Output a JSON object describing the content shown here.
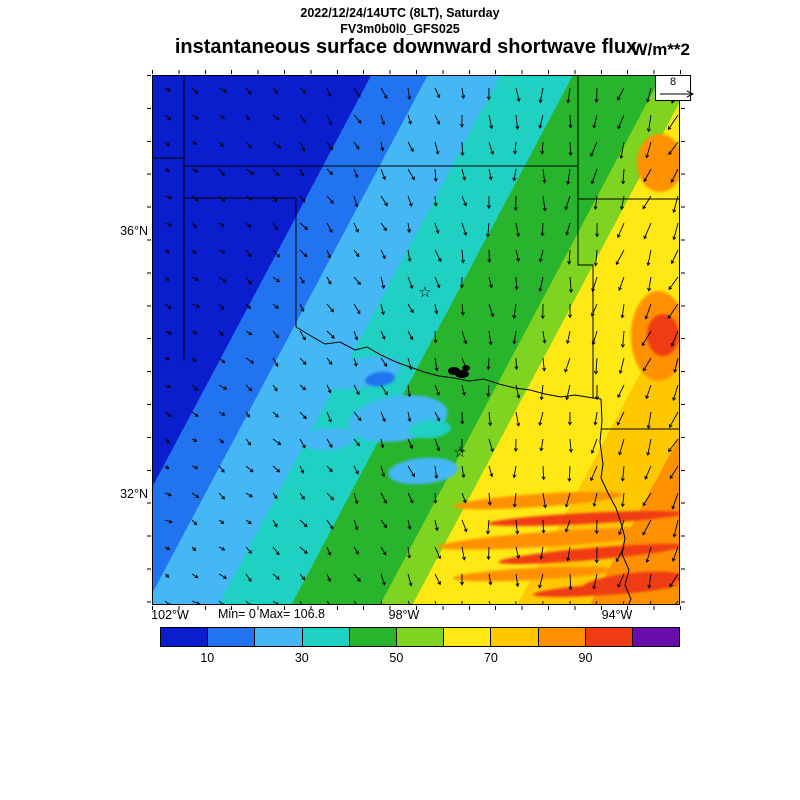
{
  "header": {
    "datetime": "2022/12/24/14UTC (8LT), Saturday",
    "model": "FV3m0b0l0_GFS025"
  },
  "title": {
    "main": "instantaneous surface downward shortwave flux",
    "units": "W/m**2"
  },
  "map": {
    "stats": "Min= 0 Max= 106.8",
    "wind_reference": "8",
    "station_marker_glyph": "☆",
    "lat_ticks": [
      {
        "label": "36°N"
      },
      {
        "label": "32°N"
      }
    ],
    "lon_ticks": [
      {
        "label": "102°W"
      },
      {
        "label": "98°W"
      },
      {
        "label": "94°W"
      }
    ]
  },
  "colorbar": {
    "ticks": [
      "10",
      "30",
      "50",
      "70",
      "90"
    ],
    "colors": [
      "#0a1ecd",
      "#2173f0",
      "#45b7f5",
      "#1fd0c3",
      "#28b42d",
      "#7fd421",
      "#ffe814",
      "#ffc800",
      "#ff9100",
      "#f03c14",
      "#6a0dad"
    ]
  },
  "chart_data": {
    "type": "heatmap",
    "title": "instantaneous surface downward shortwave flux",
    "units": "W/m**2",
    "valid_time": "2022/12/24/14UTC (8LT), Saturday",
    "model_run": "FV3m0b0l0_GFS025",
    "field_min": 0,
    "field_max": 106.8,
    "contour_levels": [
      10,
      20,
      30,
      40,
      50,
      60,
      70,
      80,
      90,
      100
    ],
    "colorbar_tick_values": [
      10,
      30,
      50,
      70,
      90
    ],
    "palette_hex": [
      "#0a1ecd",
      "#2173f0",
      "#45b7f5",
      "#1fd0c3",
      "#28b42d",
      "#7fd421",
      "#ffe814",
      "#ffc800",
      "#ff9100",
      "#f03c14",
      "#6a0dad"
    ],
    "x_axis": {
      "type": "longitude",
      "tick_labels": [
        "102°W",
        "98°W",
        "94°W"
      ]
    },
    "y_axis": {
      "type": "latitude",
      "tick_labels": [
        "36°N",
        "32°N"
      ]
    },
    "overlays": {
      "wind_vectors": true,
      "wind_reference_value": 8,
      "state_borders": "Texas / Oklahoma region",
      "station_markers": 2
    },
    "spatial_pattern": "flux increases southeastward in diagonal bands: <10 W/m**2 (dark blue) northwest, 10-50 (blue/cyan/teal) center, 50-80 (green/yellow) east, 80-107 (orange/red streaks) southeast corner"
  }
}
